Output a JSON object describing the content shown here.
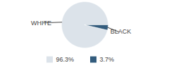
{
  "chart_data": {
    "type": "pie",
    "categories": [
      "WHITE",
      "BLACK"
    ],
    "values": [
      96.3,
      3.7
    ],
    "value_labels": [
      "96.3%",
      "3.7%"
    ],
    "colors": [
      "#dce3ea",
      "#335c7d"
    ],
    "legend": "bottom"
  }
}
